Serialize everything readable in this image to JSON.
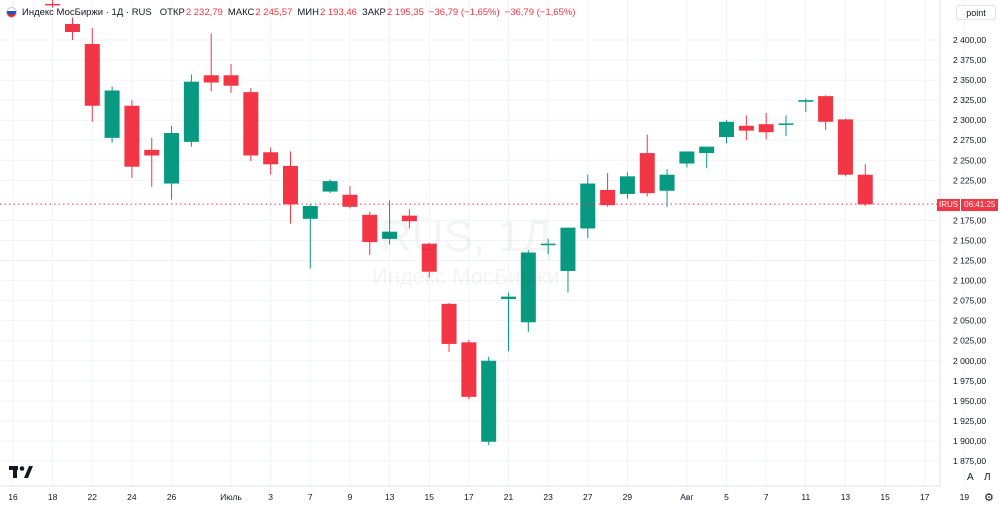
{
  "legend": {
    "name": "Индекс МосБиржи · 1Д · RUS",
    "open_label": "ОТКР",
    "open_value": "2 232,79",
    "high_label": "МАКС",
    "high_value": "2 245,57",
    "low_label": "МИН",
    "low_value": "2 193,46",
    "close_label": "ЗАКР",
    "close_value": "2 195,35",
    "change_value": "−36,79 (−1,65%)",
    "change_value2": "−36,79 (−1,65%)"
  },
  "unit_label": "point",
  "price_badge": {
    "symbol": "IRUS",
    "timer": "06:41:25"
  },
  "watermark": {
    "line1": "RUS, 1Д",
    "line2": "Индекс МосБиржи"
  },
  "scale_buttons": {
    "auto": "A",
    "log": "Л"
  },
  "colors": {
    "up": "#089981",
    "down": "#f23645",
    "grid": "#f0f3fa",
    "axis_text": "#131722"
  },
  "icons": {
    "logo": "tradingview-logo-icon",
    "settings": "gear-icon"
  },
  "chart_data": {
    "type": "candlestick",
    "ylim": [
      1860,
      2430
    ],
    "y_ticks": [
      2400,
      2375,
      2350,
      2325,
      2300,
      2275,
      2250,
      2225,
      2175,
      2150,
      2125,
      2100,
      2075,
      2050,
      2025,
      2000,
      1975,
      1950,
      1925,
      1900,
      1875
    ],
    "y_tick_labels": [
      "2 400,00",
      "2 375,00",
      "2 350,00",
      "2 325,00",
      "2 300,00",
      "2 275,00",
      "2 250,00",
      "2 225,00",
      "2 175,00",
      "2 150,00",
      "2 125,00",
      "2 100,00",
      "2 075,00",
      "2 050,00",
      "2 025,00",
      "2 000,00",
      "1 975,00",
      "1 950,00",
      "1 925,00",
      "1 900,00",
      "1 875,00"
    ],
    "current_price": 2195.35,
    "x_ticks": [
      {
        "day": 0,
        "label": "16"
      },
      {
        "day": 2,
        "label": "18"
      },
      {
        "day": 4,
        "label": "22"
      },
      {
        "day": 6,
        "label": "24"
      },
      {
        "day": 8,
        "label": "26"
      },
      {
        "day": 11,
        "label": "Июль"
      },
      {
        "day": 13,
        "label": "3"
      },
      {
        "day": 15,
        "label": "7"
      },
      {
        "day": 17,
        "label": "9"
      },
      {
        "day": 19,
        "label": "13"
      },
      {
        "day": 21,
        "label": "15"
      },
      {
        "day": 23,
        "label": "17"
      },
      {
        "day": 25,
        "label": "21"
      },
      {
        "day": 27,
        "label": "23"
      },
      {
        "day": 29,
        "label": "27"
      },
      {
        "day": 31,
        "label": "29"
      },
      {
        "day": 34,
        "label": "Авг"
      },
      {
        "day": 36,
        "label": "5"
      },
      {
        "day": 38,
        "label": "7"
      },
      {
        "day": 40,
        "label": "11"
      },
      {
        "day": 42,
        "label": "13"
      },
      {
        "day": 44,
        "label": "15"
      },
      {
        "day": 46,
        "label": "17"
      },
      {
        "day": 48,
        "label": "19"
      }
    ],
    "candles": [
      {
        "day": 2,
        "open": 2445,
        "high": 2455,
        "low": 2440,
        "close": 2444
      },
      {
        "day": 3,
        "open": 2420,
        "high": 2428,
        "low": 2400,
        "close": 2410
      },
      {
        "day": 4,
        "open": 2395,
        "high": 2415,
        "low": 2298,
        "close": 2318
      },
      {
        "day": 5,
        "open": 2278,
        "high": 2342,
        "low": 2272,
        "close": 2337
      },
      {
        "day": 6,
        "open": 2318,
        "high": 2325,
        "low": 2228,
        "close": 2242
      },
      {
        "day": 7,
        "open": 2263,
        "high": 2278,
        "low": 2217,
        "close": 2256
      },
      {
        "day": 8,
        "open": 2221,
        "high": 2293,
        "low": 2201,
        "close": 2284
      },
      {
        "day": 9,
        "open": 2273,
        "high": 2357,
        "low": 2267,
        "close": 2348
      },
      {
        "day": 10,
        "open": 2356,
        "high": 2408,
        "low": 2336,
        "close": 2347
      },
      {
        "day": 11,
        "open": 2356,
        "high": 2370,
        "low": 2334,
        "close": 2343
      },
      {
        "day": 12,
        "open": 2335,
        "high": 2340,
        "low": 2249,
        "close": 2256
      },
      {
        "day": 13,
        "open": 2260,
        "high": 2266,
        "low": 2232,
        "close": 2245
      },
      {
        "day": 14,
        "open": 2243,
        "high": 2261,
        "low": 2171,
        "close": 2195
      },
      {
        "day": 15,
        "open": 2177,
        "high": 2195,
        "low": 2115,
        "close": 2193
      },
      {
        "day": 16,
        "open": 2211,
        "high": 2226,
        "low": 2209,
        "close": 2224
      },
      {
        "day": 17,
        "open": 2207,
        "high": 2218,
        "low": 2190,
        "close": 2192
      },
      {
        "day": 18,
        "open": 2182,
        "high": 2186,
        "low": 2132,
        "close": 2148
      },
      {
        "day": 19,
        "open": 2152,
        "high": 2200,
        "low": 2145,
        "close": 2161
      },
      {
        "day": 20,
        "open": 2181,
        "high": 2189,
        "low": 2165,
        "close": 2174
      },
      {
        "day": 21,
        "open": 2146,
        "high": 2147,
        "low": 2104,
        "close": 2111
      },
      {
        "day": 22,
        "open": 2071,
        "high": 2072,
        "low": 2011,
        "close": 2021
      },
      {
        "day": 23,
        "open": 2023,
        "high": 2026,
        "low": 1952,
        "close": 1955
      },
      {
        "day": 24,
        "open": 1899,
        "high": 2005,
        "low": 1895,
        "close": 2000
      },
      {
        "day": 25,
        "open": 2077,
        "high": 2085,
        "low": 2012,
        "close": 2080
      },
      {
        "day": 26,
        "open": 2048,
        "high": 2138,
        "low": 2036,
        "close": 2135
      },
      {
        "day": 27,
        "open": 2145,
        "high": 2152,
        "low": 2133,
        "close": 2146
      },
      {
        "day": 28,
        "open": 2112,
        "high": 2162,
        "low": 2085,
        "close": 2166
      },
      {
        "day": 29,
        "open": 2165,
        "high": 2232,
        "low": 2153,
        "close": 2221
      },
      {
        "day": 30,
        "open": 2213,
        "high": 2234,
        "low": 2192,
        "close": 2194
      },
      {
        "day": 31,
        "open": 2208,
        "high": 2235,
        "low": 2202,
        "close": 2230
      },
      {
        "day": 32,
        "open": 2259,
        "high": 2282,
        "low": 2205,
        "close": 2209
      },
      {
        "day": 33,
        "open": 2212,
        "high": 2239,
        "low": 2192,
        "close": 2232
      },
      {
        "day": 34,
        "open": 2246,
        "high": 2258,
        "low": 2241,
        "close": 2261
      },
      {
        "day": 35,
        "open": 2259,
        "high": 2265,
        "low": 2240,
        "close": 2267
      },
      {
        "day": 36,
        "open": 2279,
        "high": 2300,
        "low": 2271,
        "close": 2298
      },
      {
        "day": 37,
        "open": 2293,
        "high": 2306,
        "low": 2275,
        "close": 2287
      },
      {
        "day": 38,
        "open": 2295,
        "high": 2309,
        "low": 2276,
        "close": 2285
      },
      {
        "day": 39,
        "open": 2295,
        "high": 2306,
        "low": 2280,
        "close": 2296
      },
      {
        "day": 40,
        "open": 2323,
        "high": 2327,
        "low": 2310,
        "close": 2325
      },
      {
        "day": 41,
        "open": 2330,
        "high": 2331,
        "low": 2288,
        "close": 2298
      },
      {
        "day": 42,
        "open": 2301,
        "high": 2302,
        "low": 2230,
        "close": 2232
      },
      {
        "day": 43,
        "open": 2232,
        "high": 2245,
        "low": 2193,
        "close": 2195
      }
    ]
  }
}
